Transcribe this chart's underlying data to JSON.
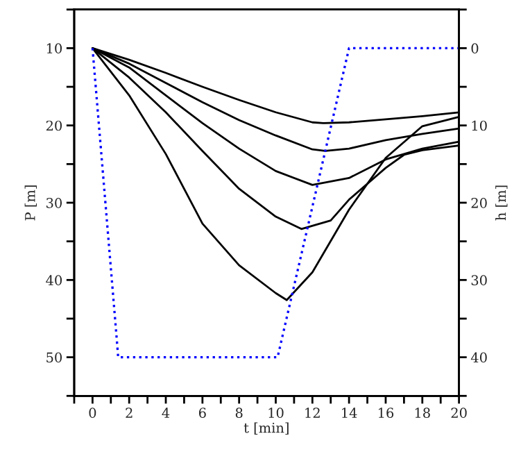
{
  "chart_data": {
    "type": "line",
    "xlabel": "t [min]",
    "ylabel": "P [m]",
    "y2label": "h [m]",
    "xlim": [
      -1,
      20
    ],
    "xticks": [
      {
        "value": -1,
        "label": null
      },
      0,
      {
        "value": 1,
        "label": null
      },
      2,
      {
        "value": 3,
        "label": null
      },
      4,
      {
        "value": 5,
        "label": null
      },
      6,
      {
        "value": 7,
        "label": null
      },
      8,
      {
        "value": 9,
        "label": null
      },
      10,
      {
        "value": 11,
        "label": null
      },
      12,
      {
        "value": 13,
        "label": null
      },
      14,
      {
        "value": 15,
        "label": null
      },
      16,
      {
        "value": 17,
        "label": null
      },
      18,
      {
        "value": 19,
        "label": null
      },
      20
    ],
    "ylim": [
      55,
      5
    ],
    "yticks": [
      {
        "value": 5,
        "label": null
      },
      10,
      {
        "value": 15,
        "label": null
      },
      20,
      {
        "value": 25,
        "label": null
      },
      30,
      {
        "value": 35,
        "label": null
      },
      40,
      {
        "value": 45,
        "label": null
      },
      50,
      {
        "value": 55,
        "label": null
      }
    ],
    "y2lim": [
      45,
      -5
    ],
    "y2ticks": [
      {
        "value": -5,
        "label": null
      },
      0,
      {
        "value": 5,
        "label": null
      },
      10,
      {
        "value": 15,
        "label": null
      },
      20,
      {
        "value": 25,
        "label": null
      },
      30,
      {
        "value": 35,
        "label": null
      },
      40,
      {
        "value": 45,
        "label": null
      }
    ],
    "grid": false,
    "marker": "none",
    "series": [
      {
        "color": "#000000",
        "line_style": "solid",
        "x": [
          0,
          2,
          4,
          6,
          8,
          10,
          12,
          12.6,
          14,
          16,
          18,
          20
        ],
        "values": [
          10,
          11.5,
          13.2,
          15,
          16.7,
          18.3,
          19.6,
          19.7,
          19.6,
          19.2,
          18.8,
          18.3
        ]
      },
      {
        "color": "#000000",
        "line_style": "solid",
        "x": [
          0,
          2,
          4,
          6,
          8,
          10,
          12,
          12.7,
          14,
          16,
          18,
          20
        ],
        "values": [
          10,
          12,
          14.5,
          17,
          19.3,
          21.3,
          23.1,
          23.3,
          23,
          21.9,
          21.1,
          20.4
        ]
      },
      {
        "color": "#000000",
        "line_style": "solid",
        "x": [
          0,
          2,
          4,
          6,
          8,
          10,
          12,
          14,
          16,
          18,
          20
        ],
        "values": [
          10,
          12.5,
          16.1,
          19.7,
          23,
          25.9,
          27.7,
          26.8,
          24.4,
          23,
          22.1
        ]
      },
      {
        "color": "#000000",
        "line_style": "solid",
        "x": [
          0,
          2,
          4,
          6,
          8,
          10,
          11.4,
          13,
          14,
          16,
          17,
          18,
          20
        ],
        "values": [
          10,
          13.8,
          18.3,
          23.3,
          28.2,
          31.8,
          33.4,
          32.3,
          29.6,
          25.5,
          23.8,
          23.2,
          22.6
        ]
      },
      {
        "color": "#000000",
        "line_style": "solid",
        "x": [
          0,
          2,
          4,
          6,
          8,
          10,
          10.6,
          12,
          14,
          16,
          18,
          20
        ],
        "values": [
          10,
          16.1,
          23.7,
          32.7,
          38.1,
          41.7,
          42.6,
          39,
          30.9,
          24.2,
          20.1,
          18.9
        ]
      },
      {
        "color": "#0000ff",
        "line_style": "dotted",
        "axis": "y2",
        "x": [
          0,
          1.3,
          1.4,
          10.1,
          14,
          20
        ],
        "values": [
          0,
          37,
          40,
          40,
          0,
          0
        ]
      }
    ]
  }
}
